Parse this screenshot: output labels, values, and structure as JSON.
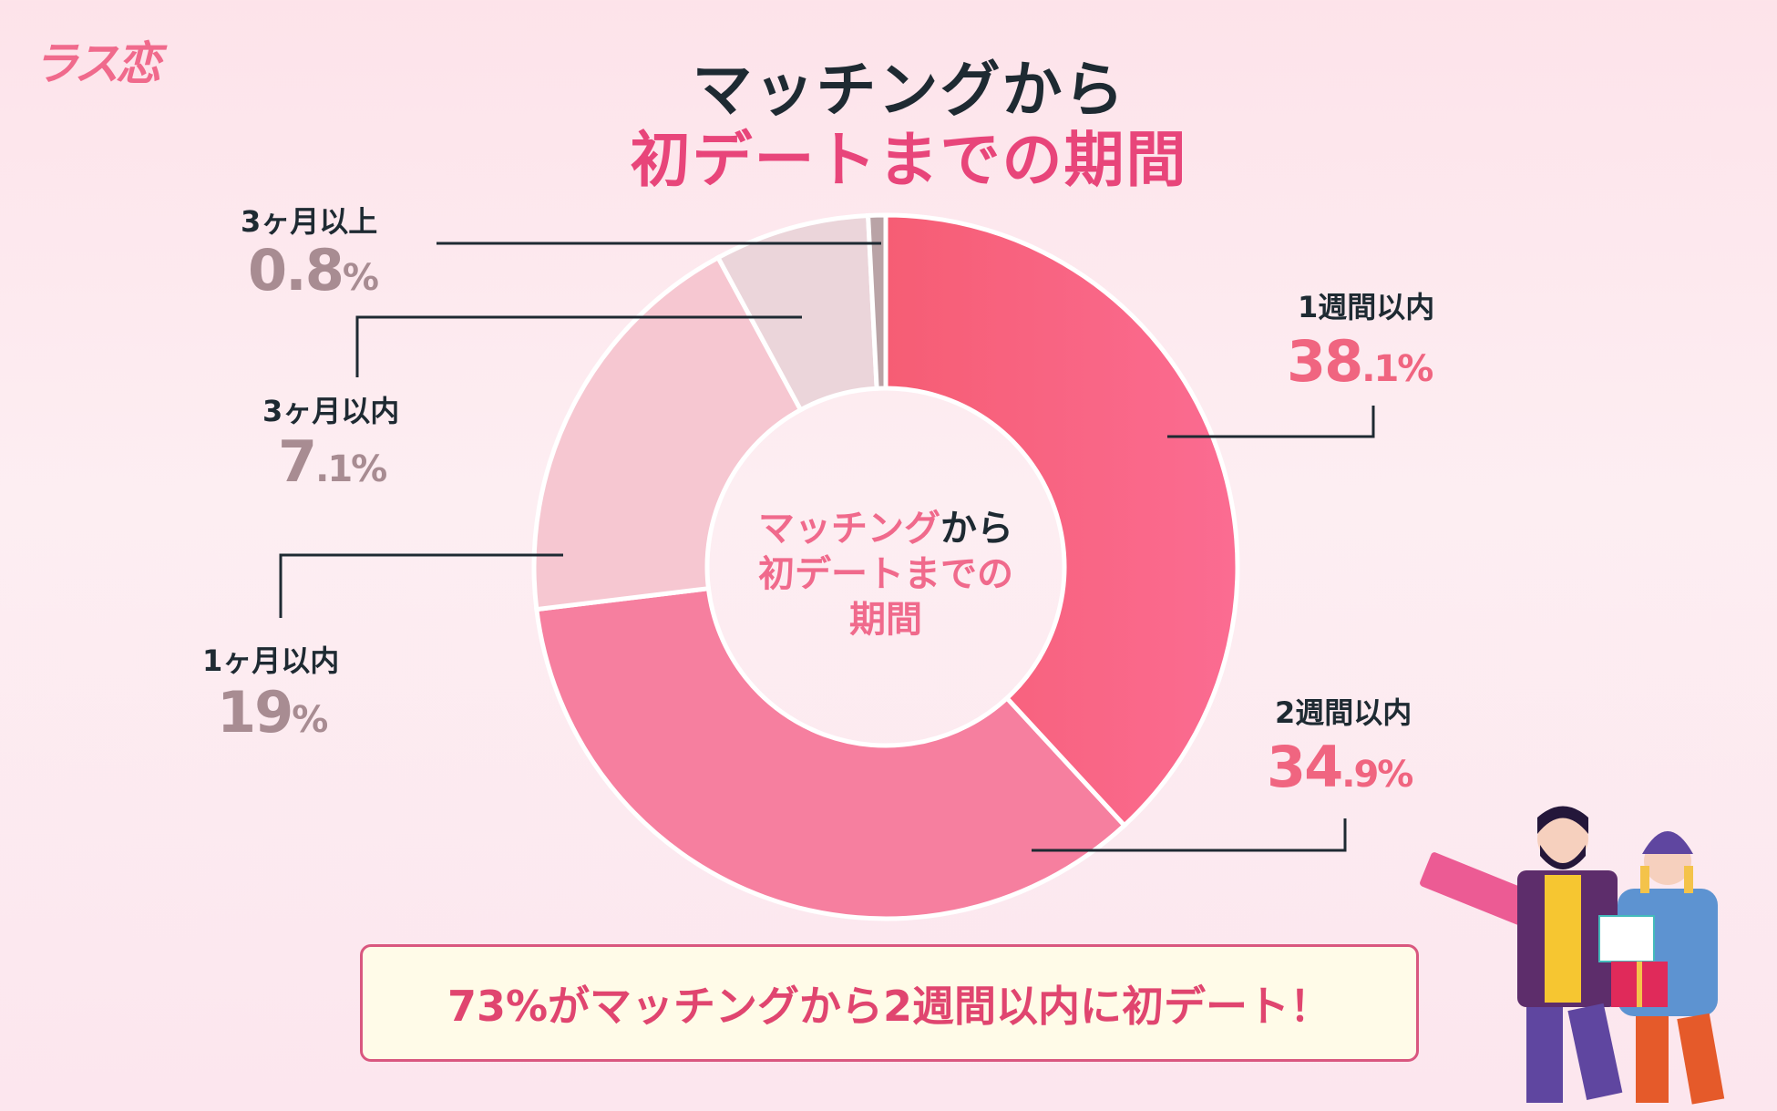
{
  "logo": "ラス恋",
  "title": {
    "line1": "マッチングから",
    "line2": "初デートまでの期間"
  },
  "center_label": {
    "part1": "マッチング",
    "part2": "から",
    "line2": "初デートまでの",
    "line3": "期間"
  },
  "chart_data": {
    "type": "pie",
    "donut": true,
    "categories": [
      "1週間以内",
      "2週間以内",
      "1ヶ月以内",
      "3ヶ月以内",
      "3ヶ月以上"
    ],
    "values": [
      38.1,
      34.9,
      19,
      7.1,
      0.8
    ],
    "colors": [
      "#f8677f",
      "#f67f9f",
      "#f6c7d1",
      "#ebd5da",
      "#b9a3a6"
    ],
    "labels": [
      {
        "name": "1週間以内",
        "int": "38",
        "dec": ".1%"
      },
      {
        "name": "2週間以内",
        "int": "34",
        "dec": ".9%"
      },
      {
        "name": "1ヶ月以内",
        "int": "19",
        "dec": "%"
      },
      {
        "name": "3ヶ月以内",
        "int": "7",
        "dec": ".1%"
      },
      {
        "name": "3ヶ月以上",
        "int": "0.8",
        "dec": "%"
      }
    ]
  },
  "summary": "73%がマッチングから2週間以内に初デート！"
}
